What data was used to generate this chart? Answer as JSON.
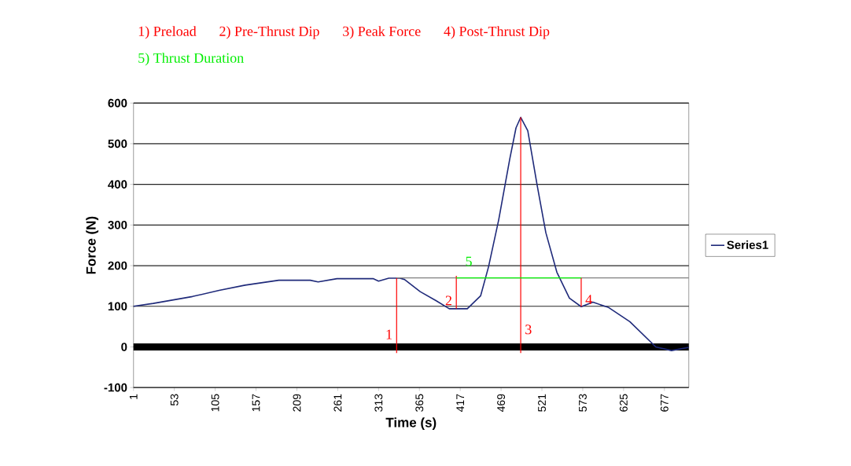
{
  "chart_data": {
    "type": "line",
    "xlabel": "Time (s)",
    "ylabel": "Force (N)",
    "annotations": [
      "1) Preload",
      "2) Pre-Thrust Dip",
      "3) Peak Force",
      "4) Post-Thrust Dip",
      "5) Thrust Duration"
    ],
    "series": [
      {
        "name": "Series1",
        "color": "#1f2a7a",
        "x": [
          1,
          26,
          76,
          110,
          143,
          186,
          226,
          236,
          260,
          306,
          313,
          326,
          340,
          346,
          366,
          386,
          403,
          426,
          443,
          453,
          466,
          480,
          488,
          494,
          503,
          515,
          526,
          540,
          556,
          571,
          586,
          606,
          633,
          666,
          686,
          708
        ],
        "values": [
          100,
          107,
          124,
          139,
          152,
          164,
          164,
          160,
          168,
          168,
          162,
          169,
          169,
          166,
          136,
          114,
          94,
          94,
          126,
          197,
          313,
          462,
          539,
          565,
          532,
          397,
          281,
          184,
          120,
          99,
          110,
          97,
          62,
          0,
          -9,
          -1
        ]
      },
      {
        "color": "#808080",
        "type": "line",
        "x": [
          336,
          708
        ],
        "values": [
          170,
          170
        ]
      },
      {
        "name": "1",
        "color": "#ff0000",
        "type": "line",
        "x": [
          336,
          336
        ],
        "values": [
          -15,
          169
        ]
      },
      {
        "name": "2",
        "color": "#ff0000",
        "type": "line",
        "x": [
          412,
          412
        ],
        "values": [
          94,
          175
        ]
      },
      {
        "name": "3",
        "color": "#ff0000",
        "type": "line",
        "x": [
          494,
          494
        ],
        "values": [
          -15,
          565
        ]
      },
      {
        "name": "4",
        "color": "#ff0000",
        "type": "line",
        "x": [
          571,
          571
        ],
        "values": [
          99,
          170
        ]
      },
      {
        "name": "5",
        "color": "#00ee00",
        "type": "line",
        "x": [
          412,
          571
        ],
        "values": [
          170,
          170
        ]
      }
    ],
    "ref_lines": [
      {
        "axis": "y",
        "value": 0,
        "color": "#000000"
      }
    ],
    "xlim": [
      1,
      708
    ],
    "ylim": [
      -100,
      600
    ],
    "xticks": [
      1,
      53,
      105,
      157,
      209,
      261,
      313,
      365,
      417,
      469,
      521,
      573,
      625,
      677
    ],
    "yticks": [
      -100,
      0,
      100,
      200,
      300,
      400,
      500,
      600
    ],
    "grid": "y",
    "legend": "right"
  }
}
